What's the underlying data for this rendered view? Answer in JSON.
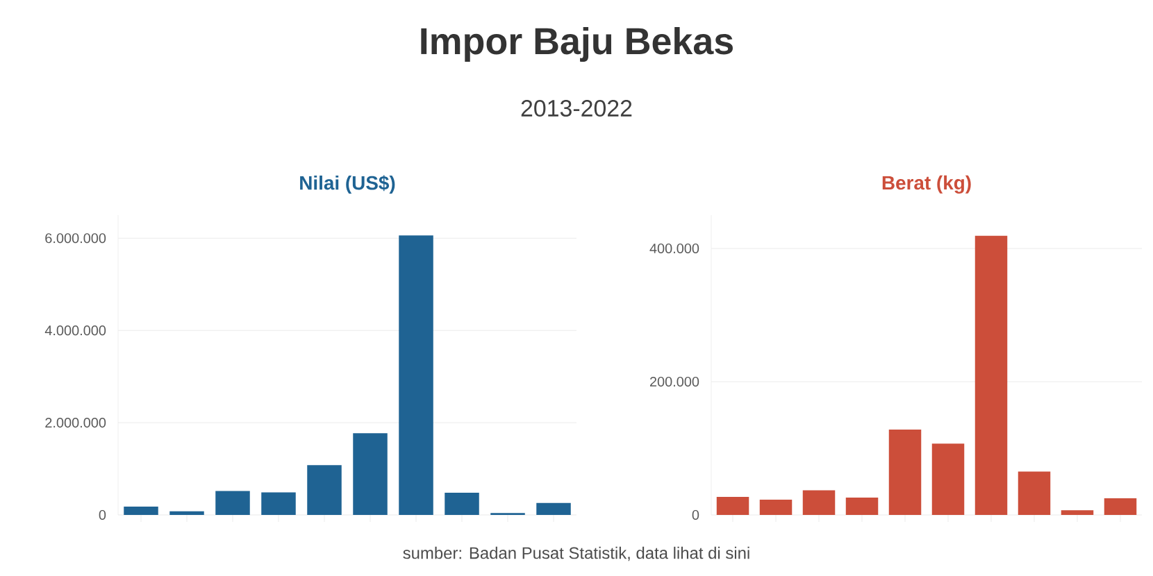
{
  "chart_data": [
    {
      "type": "other",
      "title": "Impor Baju Bekas",
      "subtitle": "2013-2022",
      "annotations": [
        "sumber: Badan Pusat Statistik, data lihat di sini"
      ]
    },
    {
      "type": "bar",
      "title": "Nilai (US$)",
      "categories": [
        null,
        null,
        null,
        null,
        null,
        null,
        null,
        null,
        null,
        null
      ],
      "values": [
        180000,
        80000,
        520000,
        490000,
        1080000,
        1770000,
        6060000,
        480000,
        40000,
        260000
      ],
      "color": "#1f6393",
      "ylim": [
        0,
        6500000
      ],
      "yticks": [
        0,
        {
          "value": 2000000,
          "label": "2.000.000"
        },
        {
          "value": 4000000,
          "label": "4.000.000"
        },
        {
          "value": 6000000,
          "label": "6.000.000"
        }
      ],
      "grid": "y",
      "tick_labels": "y"
    },
    {
      "type": "bar",
      "title": "Berat (kg)",
      "categories": [
        null,
        null,
        null,
        null,
        null,
        null,
        null,
        null,
        null,
        null
      ],
      "values": [
        27000,
        23000,
        37000,
        26000,
        128000,
        107000,
        419000,
        65000,
        7000,
        25000
      ],
      "color": "#cc4e3a",
      "ylim": [
        0,
        450000
      ],
      "yticks": [
        0,
        {
          "value": 200000,
          "label": "200.000"
        },
        {
          "value": 400000,
          "label": "400.000"
        }
      ],
      "grid": "y",
      "tick_labels": "y"
    }
  ]
}
